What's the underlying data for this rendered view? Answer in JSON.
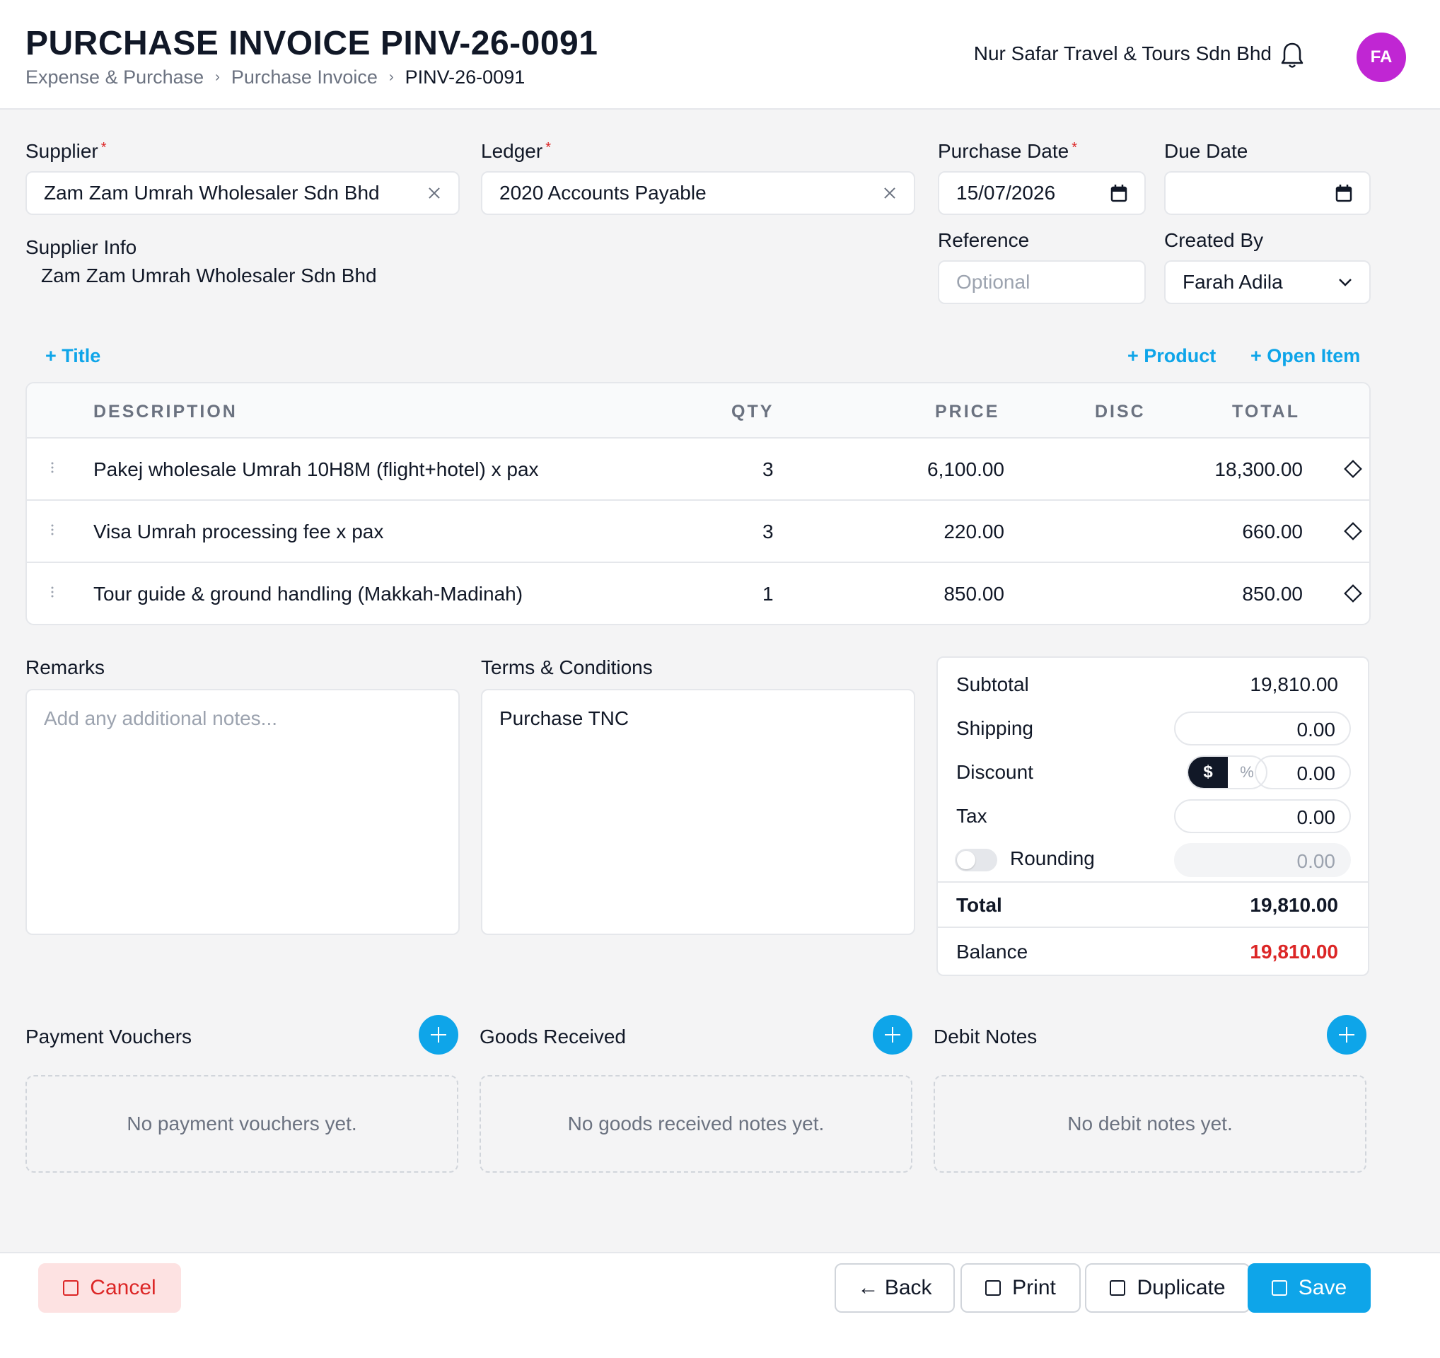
{
  "header": {
    "title": "PURCHASE INVOICE PINV-26-0091",
    "breadcrumb": [
      "Expense & Purchase",
      "Purchase Invoice",
      "PINV-26-0091"
    ],
    "company": "Nur Safar Travel & Tours Sdn Bhd",
    "avatar_initials": "FA",
    "avatar_color": "#c026d3"
  },
  "form": {
    "supplier_label": "Supplier",
    "supplier_value": "Zam Zam Umrah Wholesaler Sdn Bhd",
    "ledger_label": "Ledger",
    "ledger_value": "2020 Accounts Payable",
    "purchase_date_label": "Purchase Date",
    "purchase_date_value": "15/07/2026",
    "due_date_label": "Due Date",
    "due_date_value": "",
    "supplier_info_label": "Supplier Info",
    "supplier_info_value": "Zam Zam Umrah Wholesaler Sdn Bhd",
    "reference_label": "Reference",
    "reference_placeholder": "Optional",
    "created_by_label": "Created By",
    "created_by_value": "Farah Adila"
  },
  "actions": {
    "add_title": "+ Title",
    "add_product": "+ Product",
    "add_open_item": "+ Open Item"
  },
  "table": {
    "headers": {
      "description": "DESCRIPTION",
      "qty": "QTY",
      "price": "PRICE",
      "disc": "DISC",
      "total": "TOTAL"
    },
    "rows": [
      {
        "description": "Pakej wholesale Umrah 10H8M (flight+hotel) x pax",
        "qty": "3",
        "price": "6,100.00",
        "disc": "",
        "total": "18,300.00"
      },
      {
        "description": "Visa Umrah processing fee x pax",
        "qty": "3",
        "price": "220.00",
        "disc": "",
        "total": "660.00"
      },
      {
        "description": "Tour guide & ground handling (Makkah-Madinah)",
        "qty": "1",
        "price": "850.00",
        "disc": "",
        "total": "850.00"
      }
    ]
  },
  "notes": {
    "remarks_label": "Remarks",
    "remarks_placeholder": "Add any additional notes...",
    "terms_label": "Terms & Conditions",
    "terms_value": "Purchase TNC"
  },
  "summary": {
    "subtotal_label": "Subtotal",
    "subtotal_value": "19,810.00",
    "shipping_label": "Shipping",
    "shipping_value": "0.00",
    "discount_label": "Discount",
    "discount_mode_amount": "$",
    "discount_mode_percent": "%",
    "discount_value": "0.00",
    "tax_label": "Tax",
    "tax_value": "0.00",
    "rounding_label": "Rounding",
    "rounding_value": "0.00",
    "rounding_enabled": false,
    "total_label": "Total",
    "total_value": "19,810.00",
    "balance_label": "Balance",
    "balance_value": "19,810.00",
    "balance_color": "#dc2626"
  },
  "related": {
    "payment_vouchers_label": "Payment Vouchers",
    "payment_vouchers_empty": "No payment vouchers yet.",
    "goods_received_label": "Goods Received",
    "goods_received_empty": "No goods received notes yet.",
    "debit_notes_label": "Debit Notes",
    "debit_notes_empty": "No debit notes yet."
  },
  "footer": {
    "cancel_label": "Cancel",
    "back_label": "← Back",
    "print_label": "Print",
    "duplicate_label": "Duplicate",
    "save_label": "Save"
  },
  "colors": {
    "accent": "#0ea5e9",
    "danger": "#dc2626"
  }
}
